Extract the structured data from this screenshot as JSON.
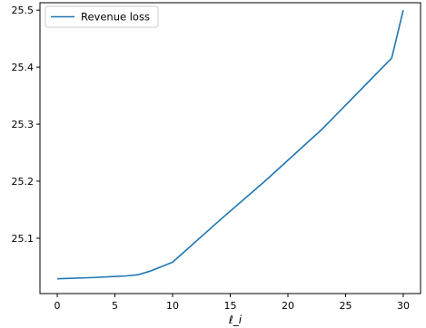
{
  "chart_data": {
    "type": "line",
    "title": "",
    "xlabel": "ℓ_i",
    "ylabel": "",
    "xlim": [
      -1.5,
      31.5
    ],
    "ylim": [
      25.003,
      25.513
    ],
    "x_ticks": [
      0,
      5,
      10,
      15,
      20,
      25,
      30
    ],
    "x_tick_labels": [
      "0",
      "5",
      "10",
      "15",
      "20",
      "25",
      "30"
    ],
    "y_ticks": [
      25.1,
      25.2,
      25.3,
      25.4,
      25.5
    ],
    "y_tick_labels": [
      "25.1",
      "25.2",
      "25.3",
      "25.4",
      "25.5"
    ],
    "grid": false,
    "legend": {
      "position": "top-left",
      "entries": [
        "Revenue loss"
      ]
    },
    "series": [
      {
        "name": "Revenue loss",
        "color": "#1f77b4",
        "x": [
          0,
          3,
          6,
          7,
          8,
          10,
          14,
          18,
          23,
          29,
          30
        ],
        "y": [
          25.029,
          25.031,
          25.034,
          25.036,
          25.042,
          25.058,
          25.13,
          25.2,
          25.292,
          25.416,
          25.5
        ]
      }
    ]
  }
}
